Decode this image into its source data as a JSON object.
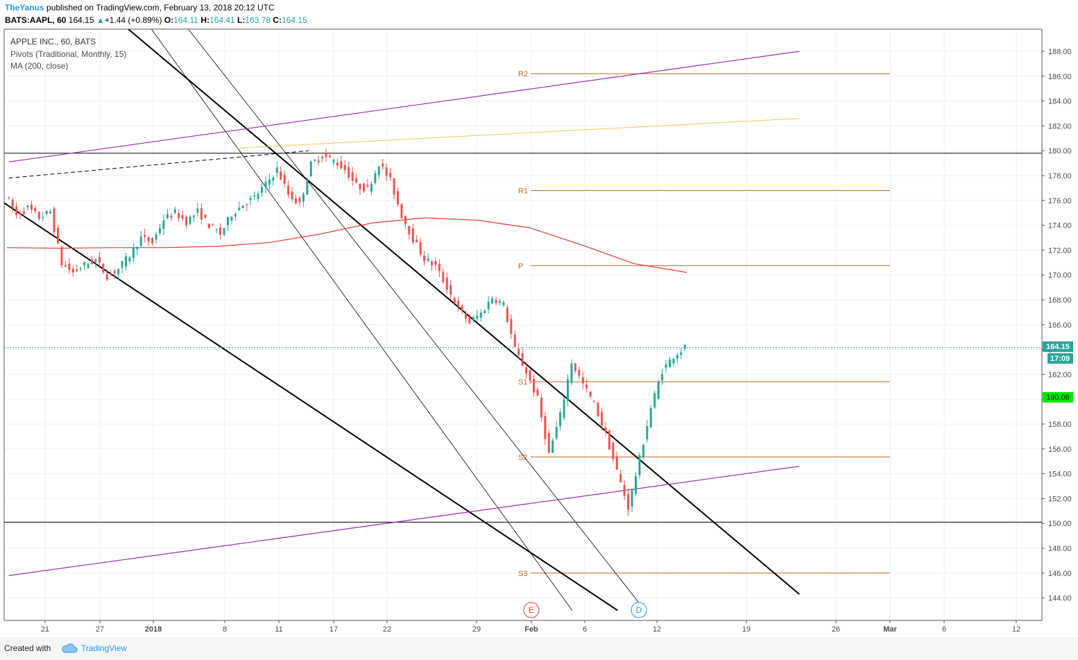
{
  "header": {
    "author": "TheYanus",
    "published": "published on TradingView.com, February 13, 2018 20:12 UTC",
    "symbol": "BATS:AAPL, 60",
    "last": "164.15",
    "change_arrow": "▲",
    "change": "+1.44 (+0.89%)",
    "o_label": "O:",
    "o_value": "164.11",
    "h_label": "H:",
    "h_value": "164.41",
    "l_label": "L:",
    "l_value": "163.78",
    "c_label": "C:",
    "c_value": "164.15"
  },
  "legend": {
    "title": "APPLE INC., 60, BATS",
    "pivots": "Pivots (Traditional, Monthly, 15)",
    "ma": "MA (200, close)"
  },
  "price_badges": {
    "last": "164.15",
    "countdown": "17:09",
    "other": "160.06"
  },
  "event_markers": [
    "E",
    "D"
  ],
  "footer": {
    "created_with": "Created with",
    "brand": "TradingView",
    "icon": "cloud-icon"
  },
  "colors": {
    "up": "#26a69a",
    "down": "#ef5350",
    "pivot": "#c26a1b",
    "ma": "#e53935",
    "purple": "#9c27b0",
    "yellow": "#f6c451",
    "last_price": "#26a69a",
    "badge_green": "#00c853",
    "event_E": "#e53935",
    "event_D": "#2196f3"
  },
  "chart_data": {
    "type": "candlestick",
    "symbol": "AAPL",
    "timeframe": "60",
    "x_tick_labels": [
      "21",
      "27",
      "2018",
      "8",
      "11",
      "17",
      "22",
      "29",
      "Feb",
      "6",
      "12",
      "19",
      "26",
      "Mar",
      "6",
      "12"
    ],
    "y_tick_labels": [
      "188.00",
      "186.00",
      "184.00",
      "182.00",
      "180.00",
      "178.00",
      "176.00",
      "174.00",
      "172.00",
      "170.00",
      "168.00",
      "166.00",
      "164.00",
      "162.00",
      "160.00",
      "158.00",
      "156.00",
      "154.00",
      "152.00",
      "150.00",
      "148.00",
      "146.00",
      "144.00"
    ],
    "ylim": [
      143.0,
      190.5
    ],
    "grid": true,
    "last_price": 164.15,
    "pivots": {
      "R2": 186.2,
      "R1": 176.8,
      "P": 170.75,
      "S1": 161.4,
      "S2": 155.35,
      "S3": 146.0
    },
    "horizontal_levels": [
      179.8,
      150.1
    ],
    "ma_200": [
      172.2,
      172.15,
      172.2,
      172.2,
      172.3,
      172.6,
      173.3,
      174.2,
      174.6,
      174.4,
      173.8,
      172.4,
      170.9,
      170.2
    ],
    "price_path": [
      176.5,
      174.8,
      175.4,
      174.6,
      175.1,
      170.9,
      170.2,
      170.8,
      171.2,
      169.9,
      170.5,
      171.6,
      173.0,
      172.6,
      174.5,
      175.0,
      174.3,
      175.1,
      174.0,
      173.3,
      174.9,
      175.7,
      176.2,
      177.3,
      178.5,
      176.5,
      175.7,
      178.9,
      179.6,
      179.2,
      178.5,
      177.2,
      176.9,
      179.0,
      177.6,
      174.8,
      172.9,
      171.3,
      170.7,
      169.0,
      167.3,
      166.2,
      166.9,
      168.2,
      167.6,
      164.0,
      162.2,
      160.0,
      155.6,
      158.7,
      163.0,
      161.2,
      159.6,
      157.2,
      154.2,
      151.3,
      155.2,
      159.3,
      162.3,
      163.5,
      164.15
    ],
    "trendlines": [
      {
        "style": "bold",
        "from": [
          "2017-12-14",
          177.0
        ],
        "to": [
          "2018-02-22",
          143.0
        ]
      },
      {
        "style": "bold",
        "from": [
          "2017-12-29",
          190.5
        ],
        "to": [
          "2018-03-14",
          144.3
        ]
      },
      {
        "style": "thin",
        "from": [
          "2018-01-01",
          190.5
        ],
        "to": [
          "2018-02-17",
          143.0
        ]
      },
      {
        "style": "thin",
        "from": [
          "2018-01-05",
          190.5
        ],
        "to": [
          "2018-02-25",
          143.0
        ]
      },
      {
        "style": "purple",
        "from": [
          "2017-12-17",
          179.1
        ],
        "to": [
          "2018-03-14",
          188.0
        ]
      },
      {
        "style": "purple",
        "from": [
          "2017-12-17",
          145.8
        ],
        "to": [
          "2018-03-14",
          154.6
        ]
      },
      {
        "style": "yellow",
        "from": [
          "2018-01-11",
          180.2
        ],
        "to": [
          "2018-03-14",
          182.6
        ]
      },
      {
        "style": "dashed",
        "from": [
          "2017-12-17",
          177.8
        ],
        "to": [
          "2018-01-19",
          180.0
        ]
      }
    ]
  }
}
